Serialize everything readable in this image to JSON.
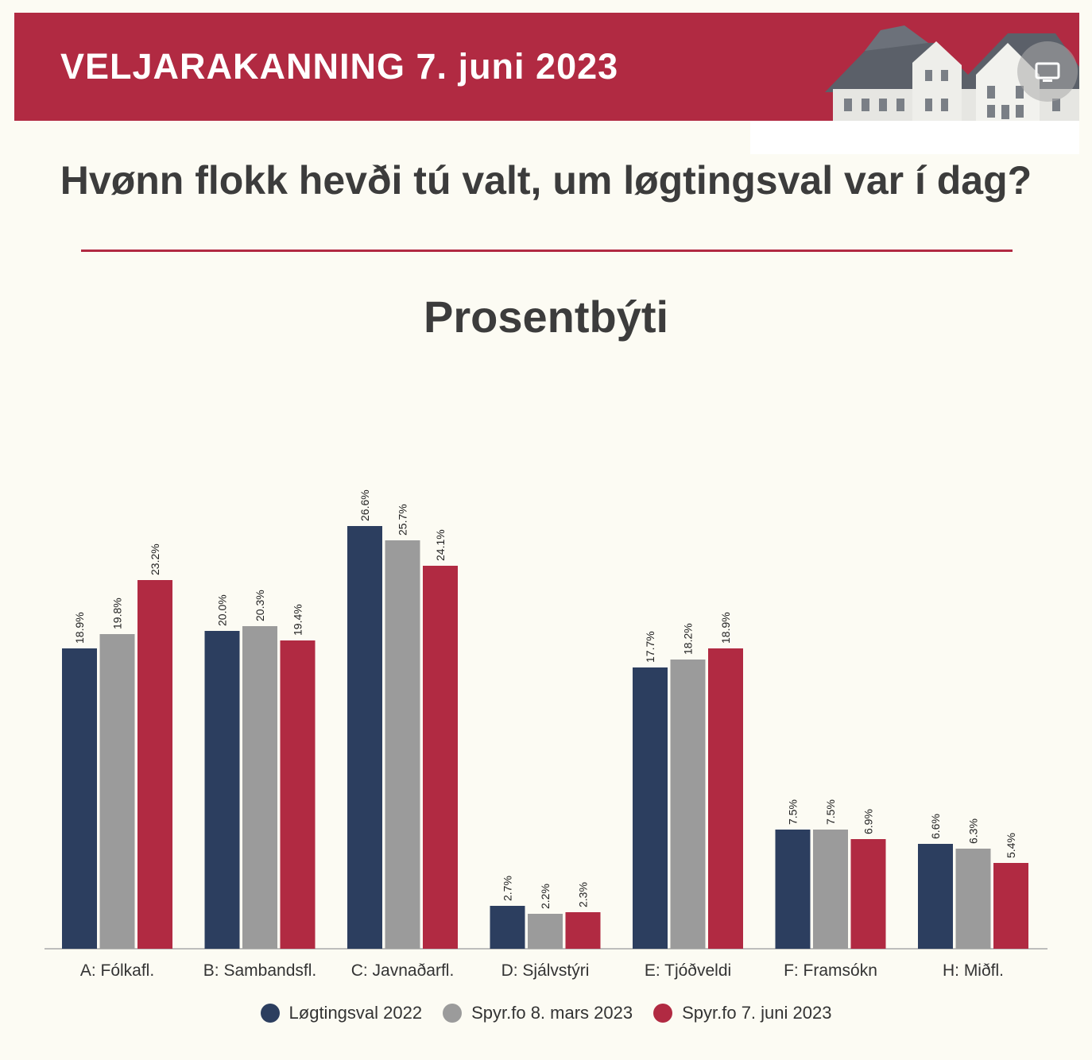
{
  "header": {
    "title": "VELJARAKANNING 7. juni 2023"
  },
  "question": "Hvønn flokk hevði tú valt, um løgtingsval var í dag?",
  "colors": {
    "brand": "#b12a42",
    "series": [
      "#2c3e5f",
      "#9b9b9b",
      "#b12a42"
    ]
  },
  "chart_data": {
    "type": "bar",
    "title": "Prosentbýti",
    "categories": [
      "A: Fólkafl.",
      "B: Sambandsfl.",
      "C: Javnaðarfl.",
      "D: Sjálvstýri",
      "E: Tjóðveldi",
      "F: Framsókn",
      "H: Miðfl."
    ],
    "series": [
      {
        "name": "Løgtingsval 2022",
        "values": [
          18.9,
          20.0,
          26.6,
          2.7,
          17.7,
          7.5,
          6.6
        ]
      },
      {
        "name": "Spyr.fo 8. mars 2023",
        "values": [
          19.8,
          20.3,
          25.7,
          2.2,
          18.2,
          7.5,
          6.3
        ]
      },
      {
        "name": "Spyr.fo 7. juni 2023",
        "values": [
          23.2,
          19.4,
          24.1,
          2.3,
          18.9,
          6.9,
          5.4
        ]
      }
    ],
    "value_format": "%",
    "ylim": [
      0,
      30
    ],
    "grid": false,
    "legend_position": "bottom"
  }
}
